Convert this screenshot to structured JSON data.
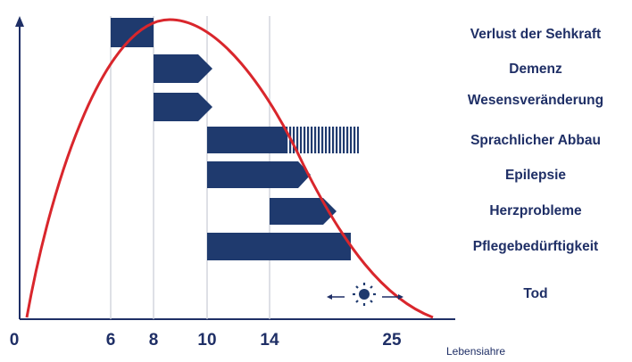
{
  "chart_data": {
    "type": "timeline",
    "xlabel": "Lebensiahre",
    "x_ticks": [
      "0",
      "6",
      "8",
      "10",
      "14",
      "25"
    ],
    "curve_color": "#d9262c",
    "bar_color": "#1f3a6e",
    "symptoms": [
      {
        "label": "Verlust der Sehkraft",
        "start": "6",
        "end": "8",
        "shape": "rect"
      },
      {
        "label": "Demenz",
        "start": "8",
        "end": "10",
        "shape": "arrow"
      },
      {
        "label": "Wesensveränderung",
        "start": "8",
        "end": "10",
        "shape": "arrow"
      },
      {
        "label": "Sprachlicher Abbau",
        "start": "10",
        "end": "25",
        "shape": "rect-hatched"
      },
      {
        "label": "Epilepsie",
        "start": "10",
        "end": "25",
        "shape": "arrow"
      },
      {
        "label": "Herzprobleme",
        "start": "14",
        "end": "25",
        "shape": "arrow"
      },
      {
        "label": "Pflegebedürftigkeit",
        "start": "10",
        "end": "25",
        "shape": "rect"
      },
      {
        "label": "Tod",
        "start": "25",
        "end": "25",
        "shape": "sun-icon"
      }
    ]
  }
}
